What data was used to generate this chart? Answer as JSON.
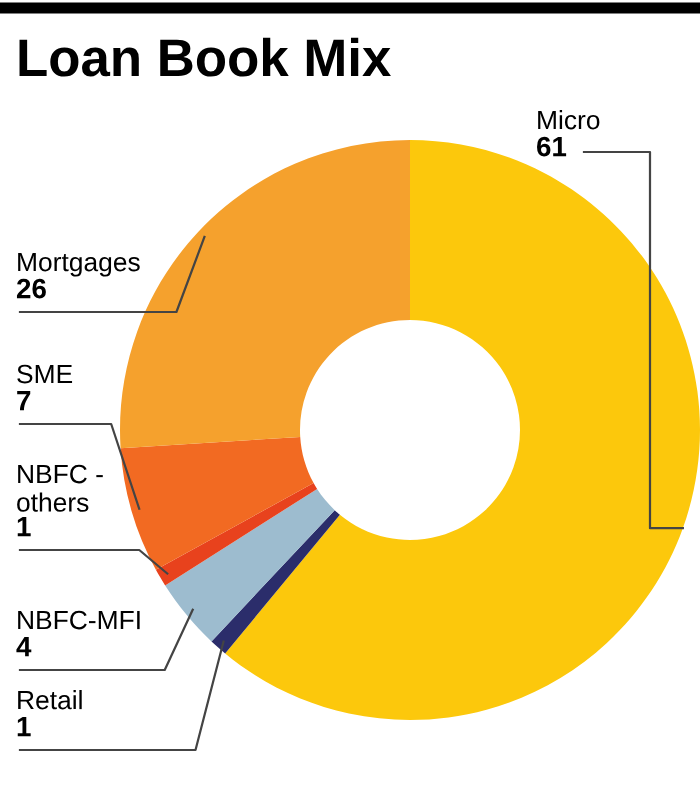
{
  "chart_data": {
    "type": "donut",
    "title": "Loan Book Mix",
    "categories": [
      "Micro",
      "Retail",
      "NBFC-MFI",
      "NBFC -\nothers",
      "SME",
      "Mortgages"
    ],
    "values": [
      61,
      1,
      4,
      1,
      7,
      26
    ],
    "colors": [
      "#fcc80c",
      "#2b2d6b",
      "#9dbccf",
      "#e8421d",
      "#f26a22",
      "#f5a12d"
    ],
    "data_labels": true
  }
}
